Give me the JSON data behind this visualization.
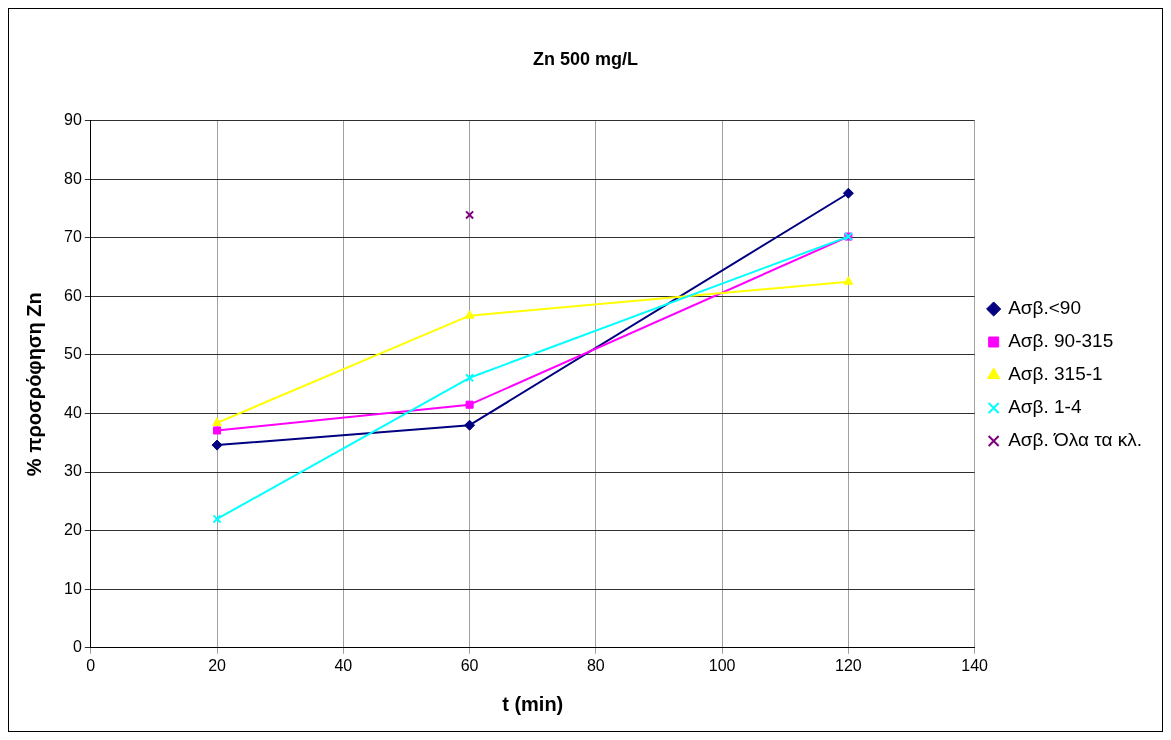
{
  "chart_data": {
    "type": "line",
    "title": "Zn 500 mg/L",
    "xlabel": "t (min)",
    "ylabel": "% προσρόφηση Zn",
    "x": [
      20,
      60,
      120
    ],
    "series": [
      {
        "name": "Ασβ.<90",
        "color": "#000080",
        "marker": "diamond",
        "values": [
          34.6,
          38.0,
          77.6
        ]
      },
      {
        "name": "Ασβ. 90-315",
        "color": "#ff00ff",
        "marker": "square",
        "values": [
          37.1,
          41.5,
          70.2
        ]
      },
      {
        "name": "Ασβ. 315-1",
        "color": "#ffff00",
        "marker": "triangle",
        "values": [
          38.4,
          56.7,
          62.5
        ]
      },
      {
        "name": "Ασβ. 1-4",
        "color": "#00ffff",
        "marker": "cross",
        "values": [
          22.0,
          46.1,
          70.2
        ]
      },
      {
        "name": "Ασβ. Όλα τα κλ.",
        "color": "#800080",
        "marker": "cross",
        "values": [
          null,
          73.9,
          null
        ]
      }
    ],
    "xlim": [
      0,
      140
    ],
    "xticks": [
      0,
      20,
      40,
      60,
      80,
      100,
      120,
      140
    ],
    "ylim": [
      0,
      90
    ],
    "yticks": [
      0,
      10,
      20,
      30,
      40,
      50,
      60,
      70,
      80,
      90
    ],
    "grid": true,
    "legend": "right"
  }
}
